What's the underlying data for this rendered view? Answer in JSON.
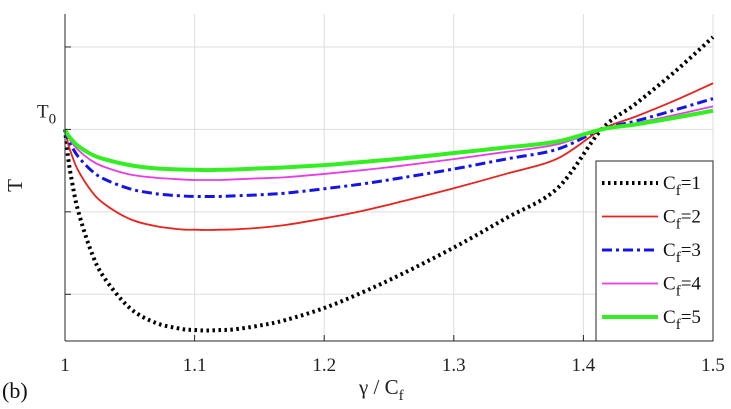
{
  "panel_label": "(b)",
  "chart_data": {
    "type": "line",
    "title": "",
    "xlabel": {
      "main": "γ / C",
      "sub": "f"
    },
    "ylabel": "T",
    "xlim": [
      1.0,
      1.5
    ],
    "ylim": [
      0.615,
      1.21
    ],
    "x_ticks": [
      1.0,
      1.1,
      1.2,
      1.3,
      1.4,
      1.5
    ],
    "x_tick_labels": [
      "1",
      "1.1",
      "1.2",
      "1.3",
      "1.4",
      "1.5"
    ],
    "y_gridlines": [
      0.7,
      0.85,
      1.0,
      1.15
    ],
    "y_tick_label": {
      "main": "T",
      "sub": "0",
      "value": 1.0
    },
    "grid": true,
    "legend_position": "bottom-right",
    "x": [
      1.0,
      1.0025,
      1.005,
      1.01,
      1.02,
      1.03,
      1.05,
      1.07,
      1.09,
      1.1,
      1.11,
      1.12,
      1.13,
      1.15,
      1.17,
      1.2,
      1.23,
      1.26,
      1.3,
      1.34,
      1.38,
      1.414,
      1.44,
      1.47,
      1.5
    ],
    "series": [
      {
        "name": {
          "main": "C",
          "sub": "f",
          "tail": "=1"
        },
        "color": "#000000",
        "style": "dotted",
        "width": 4,
        "values": [
          1.0,
          0.947,
          0.91,
          0.853,
          0.779,
          0.731,
          0.675,
          0.648,
          0.637,
          0.635,
          0.634,
          0.635,
          0.636,
          0.643,
          0.653,
          0.675,
          0.704,
          0.737,
          0.785,
          0.838,
          0.893,
          1.0,
          1.046,
          1.104,
          1.168
        ]
      },
      {
        "name": {
          "main": "C",
          "sub": "f",
          "tail": "=2"
        },
        "color": "#e8221c",
        "style": "solid",
        "width": 1.8,
        "values": [
          1.0,
          0.973,
          0.955,
          0.926,
          0.889,
          0.865,
          0.837,
          0.824,
          0.818,
          0.8175,
          0.817,
          0.8175,
          0.818,
          0.821,
          0.826,
          0.838,
          0.852,
          0.869,
          0.893,
          0.919,
          0.947,
          1.0,
          1.023,
          1.052,
          1.084
        ]
      },
      {
        "name": {
          "main": "C",
          "sub": "f",
          "tail": "=3"
        },
        "color": "#1414e6",
        "style": "dashdot",
        "width": 3,
        "values": [
          1.0,
          0.982,
          0.97,
          0.951,
          0.926,
          0.91,
          0.892,
          0.883,
          0.879,
          0.878,
          0.878,
          0.878,
          0.879,
          0.881,
          0.884,
          0.892,
          0.901,
          0.912,
          0.928,
          0.946,
          0.964,
          1.0,
          1.015,
          1.035,
          1.056
        ]
      },
      {
        "name": {
          "main": "C",
          "sub": "f",
          "tail": "=4"
        },
        "color": "#e83ce6",
        "style": "solid",
        "width": 1.8,
        "values": [
          1.0,
          0.986,
          0.977,
          0.963,
          0.944,
          0.932,
          0.918,
          0.912,
          0.909,
          0.908,
          0.908,
          0.908,
          0.909,
          0.911,
          0.913,
          0.919,
          0.926,
          0.934,
          0.946,
          0.959,
          0.973,
          1.0,
          1.011,
          1.026,
          1.042
        ]
      },
      {
        "name": {
          "main": "C",
          "sub": "f",
          "tail": "=5"
        },
        "color": "#33ee22",
        "style": "solid",
        "width": 4,
        "values": [
          1.0,
          0.989,
          0.982,
          0.97,
          0.955,
          0.946,
          0.935,
          0.929,
          0.927,
          0.9265,
          0.926,
          0.9265,
          0.927,
          0.929,
          0.931,
          0.935,
          0.941,
          0.947,
          0.957,
          0.967,
          0.978,
          1.0,
          1.009,
          1.021,
          1.034
        ]
      }
    ]
  }
}
